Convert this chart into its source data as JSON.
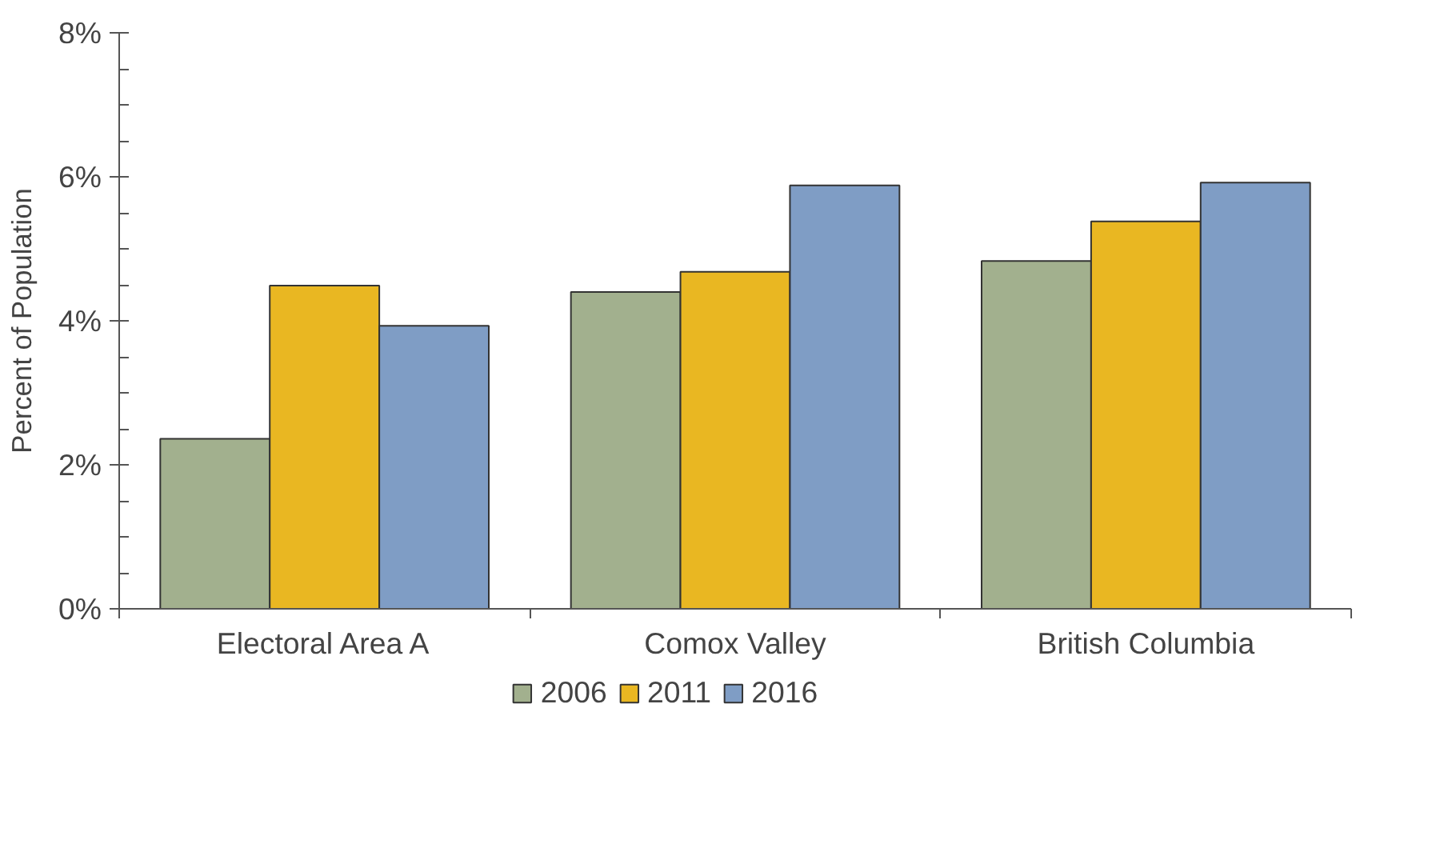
{
  "chart_data": {
    "type": "bar",
    "ylabel": "Percent of Population",
    "categories": [
      "Electoral Area A",
      "Comox Valley",
      "British Columbia"
    ],
    "series": [
      {
        "name": "2006",
        "color": "#a2b08e",
        "values": [
          2.36,
          4.4,
          4.83
        ]
      },
      {
        "name": "2011",
        "color": "#e9b722",
        "values": [
          4.49,
          4.68,
          5.38
        ]
      },
      {
        "name": "2016",
        "color": "#7f9dc5",
        "values": [
          3.93,
          5.88,
          5.92
        ]
      }
    ],
    "ylim": [
      0,
      8
    ],
    "yticks": [
      {
        "value": 0,
        "label": "0%"
      },
      {
        "value": 2,
        "label": "2%"
      },
      {
        "value": 4,
        "label": "4%"
      },
      {
        "value": 6,
        "label": "6%"
      },
      {
        "value": 8,
        "label": "8%"
      }
    ],
    "grid": false,
    "legend": "bottom"
  }
}
